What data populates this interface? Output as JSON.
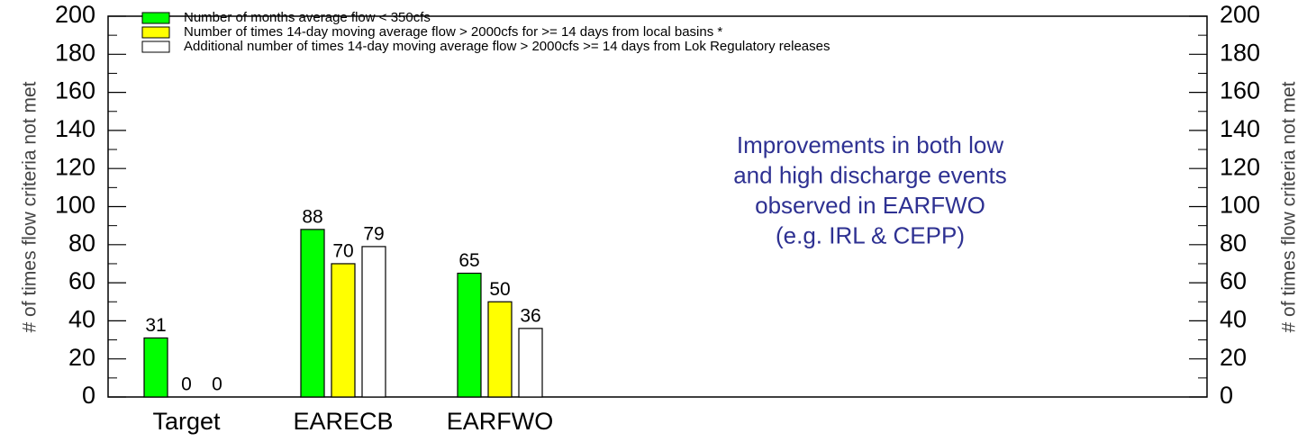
{
  "chart_data": {
    "type": "bar",
    "categories": [
      "Target",
      "EARECB",
      "EARFWO"
    ],
    "series": [
      {
        "name": "Number of months average flow < 350cfs",
        "color": "#00ff00",
        "values": [
          31,
          88,
          65
        ]
      },
      {
        "name": "Number of times 14-day moving average flow > 2000cfs for >= 14 days from local basins *",
        "color": "#ffff00",
        "values": [
          0,
          70,
          50
        ]
      },
      {
        "name": "Additional number of times 14-day moving average flow > 2000cfs >= 14 days from Lok Regulatory releases",
        "color": "#ffffff",
        "values": [
          0,
          79,
          36
        ]
      }
    ],
    "ylabel": "# of times flow criteria not met",
    "y2label": "# of times flow criteria not met",
    "ylim": [
      0,
      200
    ],
    "yticks": [
      0,
      20,
      40,
      60,
      80,
      100,
      120,
      140,
      160,
      180,
      200
    ],
    "y2lim": [
      0,
      200
    ],
    "y2ticks": [
      0,
      20,
      40,
      60,
      80,
      100,
      120,
      140,
      160,
      180,
      200
    ],
    "legend": "upper left",
    "annotation": [
      "Improvements in both low",
      "and high discharge events",
      "observed in EARFWO",
      "(e.g. IRL & CEPP)"
    ]
  }
}
